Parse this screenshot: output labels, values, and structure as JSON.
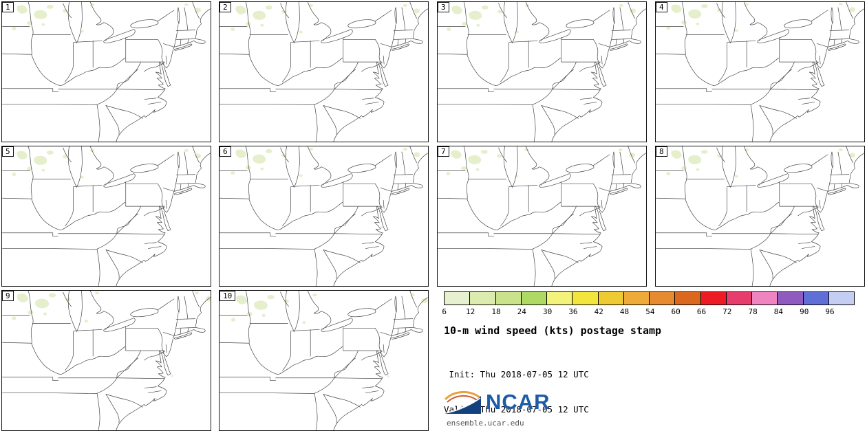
{
  "panels": [
    {
      "label": "1"
    },
    {
      "label": "2"
    },
    {
      "label": "3"
    },
    {
      "label": "4"
    },
    {
      "label": "5"
    },
    {
      "label": "6"
    },
    {
      "label": "7"
    },
    {
      "label": "8"
    },
    {
      "label": "9"
    },
    {
      "label": "10"
    }
  ],
  "colorbar": {
    "ticks": [
      "6",
      "12",
      "18",
      "24",
      "30",
      "36",
      "42",
      "48",
      "54",
      "60",
      "66",
      "72",
      "78",
      "84",
      "90",
      "96"
    ],
    "colors": [
      "#e7f0cf",
      "#dcebae",
      "#c9e28b",
      "#add964",
      "#f3f27b",
      "#f2e53e",
      "#eecb33",
      "#eeab3a",
      "#e78b31",
      "#da691f",
      "#ed1b24",
      "#e73d6d",
      "#ee85c0",
      "#8f5bbf",
      "#5f6fd6",
      "#c4cdf2"
    ]
  },
  "title": "10-m wind speed (kts) postage stamp",
  "init_line": " Init: Thu 2018-07-05 12 UTC",
  "valid_line": "Valid: Thu 2018-07-05 12 UTC",
  "logo": {
    "text": "NCAR",
    "site": "ensemble.ucar.edu"
  },
  "colors": {
    "shade_light_green": "#e6efcb",
    "map_line": "#444444",
    "logo_blue": "#1e5ba6"
  }
}
